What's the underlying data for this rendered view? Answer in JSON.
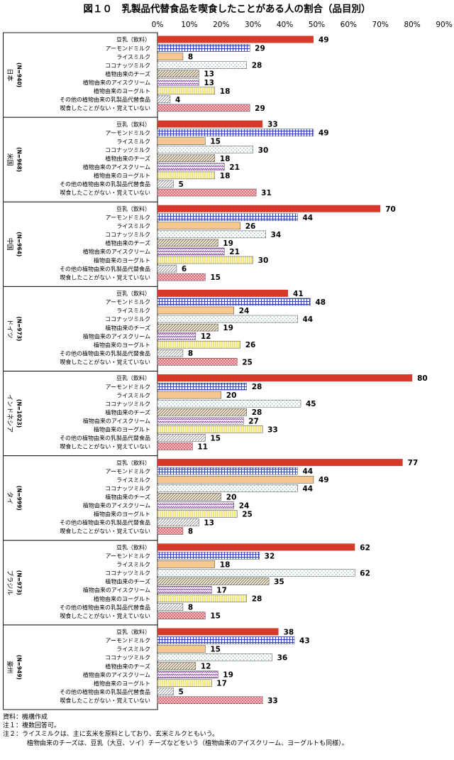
{
  "chart_data": {
    "type": "bar",
    "orientation": "horizontal",
    "title": "図１０　乳製品代替食品を喫食したことがある人の割合（品目別）",
    "xlim": [
      0,
      90
    ],
    "x_ticks": [
      "0%",
      "10%",
      "20%",
      "30%",
      "40%",
      "50%",
      "60%",
      "70%",
      "80%",
      "90%"
    ],
    "grid": false,
    "categories": [
      "豆乳（飲料）",
      "アーモンドミルク",
      "ライスミルク",
      "ココナッツミルク",
      "植物由来のチーズ",
      "植物由来のアイスクリーム",
      "植物由来のヨーグルト",
      "その他の植物由来の乳製品代替食品",
      "喫食したことがない・覚えていない"
    ],
    "category_styles": [
      {
        "pattern": "solid",
        "color": "#d63a2b"
      },
      {
        "pattern": "grid",
        "color": "#3a4fb0"
      },
      {
        "pattern": "solid",
        "color": "#f6c88f"
      },
      {
        "pattern": "dots",
        "color": "#8fb8b8"
      },
      {
        "pattern": "diagonal",
        "color": "#8a7a5a"
      },
      {
        "pattern": "zigzag",
        "color": "#8a3ab0"
      },
      {
        "pattern": "vertical",
        "color": "#e6d23a"
      },
      {
        "pattern": "hatch",
        "color": "#555555"
      },
      {
        "pattern": "check",
        "color": "#d84a5a"
      }
    ],
    "groups": [
      {
        "name": "日本",
        "n": "(N=940)",
        "values": [
          49,
          29,
          8,
          28,
          13,
          13,
          18,
          4,
          29
        ]
      },
      {
        "name": "米国",
        "n": "(N=968)",
        "values": [
          33,
          49,
          15,
          30,
          18,
          21,
          18,
          5,
          31
        ]
      },
      {
        "name": "中国",
        "n": "(N=964)",
        "values": [
          70,
          44,
          26,
          34,
          19,
          21,
          30,
          6,
          15
        ]
      },
      {
        "name": "ドイツ",
        "n": "(N=973)",
        "values": [
          41,
          48,
          24,
          44,
          19,
          12,
          26,
          8,
          25
        ]
      },
      {
        "name": "インドネシア",
        "n": "(N=1023)",
        "values": [
          80,
          28,
          20,
          45,
          28,
          27,
          33,
          15,
          11
        ]
      },
      {
        "name": "タイ",
        "n": "(N=999)",
        "values": [
          77,
          44,
          49,
          44,
          20,
          24,
          25,
          13,
          8
        ]
      },
      {
        "name": "ブラジル",
        "n": "(N=973)",
        "values": [
          62,
          32,
          18,
          62,
          35,
          17,
          28,
          8,
          15
        ]
      },
      {
        "name": "豪州",
        "n": "(N=949)",
        "values": [
          38,
          43,
          15,
          36,
          12,
          19,
          17,
          5,
          33
        ]
      }
    ]
  },
  "notes": {
    "source": "資料：機構作成",
    "note1": "注１：複数回答可。",
    "note2": "注２：ライスミルクは、主に玄米を原料としており、玄米ミルクともいう。",
    "note2b": "植物由来のチーズは、豆乳（大豆、ソイ）チーズなどをいう（植物由来のアイスクリーム、ヨーグルトも同様）。"
  }
}
